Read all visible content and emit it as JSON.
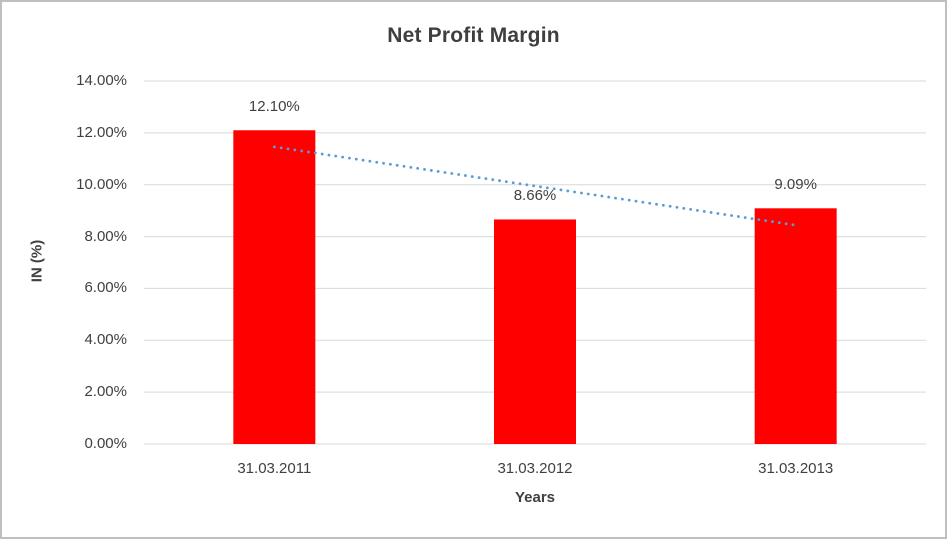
{
  "chart": {
    "title": "Net Profit Margin",
    "y_axis_title": "IN (%)",
    "x_axis_title": "Years"
  },
  "chart_data": {
    "type": "bar",
    "title": "Net Profit Margin",
    "categories": [
      "31.03.2011",
      "31.03.2012",
      "31.03.2013"
    ],
    "values": [
      12.1,
      8.66,
      9.09
    ],
    "value_labels": [
      "12.10%",
      "8.66%",
      "9.09%"
    ],
    "xlabel": "Years",
    "ylabel": "IN (%)",
    "ylim": [
      0,
      14
    ],
    "y_tick_step": 2,
    "y_tick_labels": [
      "0.00%",
      "2.00%",
      "4.00%",
      "6.00%",
      "8.00%",
      "10.00%",
      "12.00%",
      "14.00%"
    ],
    "grid": true,
    "legend": false,
    "bar_color": "#ff0000",
    "gridline_color": "#d9d9d9",
    "text_color": "#404040",
    "trendline": {
      "type": "linear",
      "style": "dotted",
      "color": "#5b9bd5",
      "fitted_values": [
        11.46,
        9.95,
        8.44
      ]
    }
  }
}
